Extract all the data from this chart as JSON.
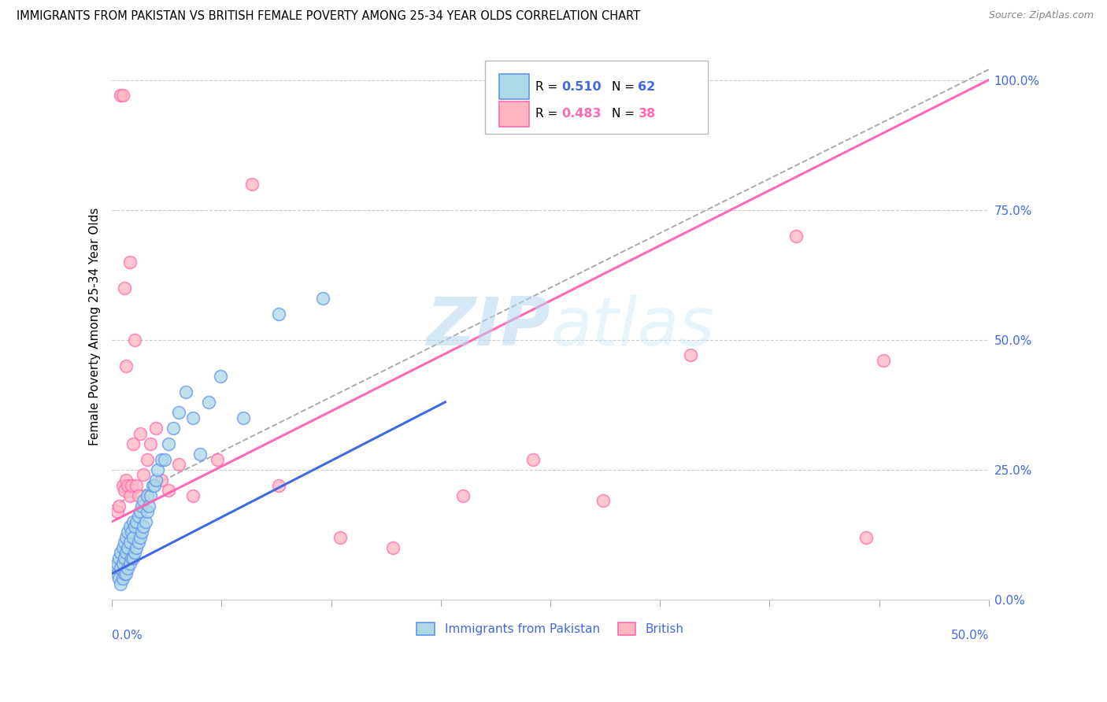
{
  "title": "IMMIGRANTS FROM PAKISTAN VS BRITISH FEMALE POVERTY AMONG 25-34 YEAR OLDS CORRELATION CHART",
  "source": "Source: ZipAtlas.com",
  "ylabel": "Female Poverty Among 25-34 Year Olds",
  "legend_label_blue": "Immigrants from Pakistan",
  "legend_label_pink": "British",
  "xlim": [
    0.0,
    0.5
  ],
  "ylim": [
    0.0,
    1.05
  ],
  "ytick_vals": [
    0.0,
    0.25,
    0.5,
    0.75,
    1.0
  ],
  "ytick_labels": [
    "0.0%",
    "25.0%",
    "50.0%",
    "75.0%",
    "100.0%"
  ],
  "xtick_left": "0.0%",
  "xtick_right": "50.0%",
  "r_blue": "0.510",
  "n_blue": "62",
  "r_pink": "0.483",
  "n_pink": "38",
  "color_blue_face": "#ADD8E6",
  "color_blue_edge": "#6495ED",
  "color_blue_line": "#4169E1",
  "color_blue_text": "#4169E1",
  "color_pink_face": "#FFB6C1",
  "color_pink_edge": "#FF69B4",
  "color_pink_line": "#FF69B4",
  "color_pink_text": "#FF69B4",
  "color_grid": "#cccccc",
  "color_watermark": "#cce5f5",
  "blue_line_x0": 0.0,
  "blue_line_y0": 0.05,
  "blue_line_x1": 0.19,
  "blue_line_y1": 0.38,
  "pink_line_x0": 0.0,
  "pink_line_y0": 0.15,
  "pink_line_x1": 0.5,
  "pink_line_y1": 1.0,
  "dash_line_x0": 0.0,
  "dash_line_y0": 0.18,
  "dash_line_x1": 0.5,
  "dash_line_y1": 1.02,
  "blue_x": [
    0.002,
    0.003,
    0.003,
    0.004,
    0.004,
    0.005,
    0.005,
    0.005,
    0.006,
    0.006,
    0.006,
    0.007,
    0.007,
    0.007,
    0.008,
    0.008,
    0.008,
    0.009,
    0.009,
    0.009,
    0.01,
    0.01,
    0.01,
    0.011,
    0.011,
    0.012,
    0.012,
    0.012,
    0.013,
    0.013,
    0.014,
    0.014,
    0.015,
    0.015,
    0.016,
    0.016,
    0.017,
    0.017,
    0.018,
    0.018,
    0.019,
    0.02,
    0.02,
    0.021,
    0.022,
    0.023,
    0.024,
    0.025,
    0.026,
    0.028,
    0.03,
    0.032,
    0.035,
    0.038,
    0.042,
    0.046,
    0.05,
    0.055,
    0.062,
    0.075,
    0.095,
    0.12
  ],
  "blue_y": [
    0.06,
    0.05,
    0.07,
    0.04,
    0.08,
    0.03,
    0.06,
    0.09,
    0.04,
    0.07,
    0.1,
    0.05,
    0.08,
    0.11,
    0.05,
    0.09,
    0.12,
    0.06,
    0.1,
    0.13,
    0.07,
    0.11,
    0.14,
    0.08,
    0.13,
    0.08,
    0.12,
    0.15,
    0.09,
    0.14,
    0.1,
    0.15,
    0.11,
    0.16,
    0.12,
    0.17,
    0.13,
    0.18,
    0.14,
    0.19,
    0.15,
    0.17,
    0.2,
    0.18,
    0.2,
    0.22,
    0.22,
    0.23,
    0.25,
    0.27,
    0.27,
    0.3,
    0.33,
    0.36,
    0.4,
    0.35,
    0.28,
    0.38,
    0.43,
    0.35,
    0.55,
    0.58
  ],
  "pink_x": [
    0.003,
    0.004,
    0.005,
    0.006,
    0.006,
    0.007,
    0.007,
    0.008,
    0.008,
    0.009,
    0.01,
    0.01,
    0.011,
    0.012,
    0.013,
    0.014,
    0.015,
    0.016,
    0.018,
    0.02,
    0.022,
    0.025,
    0.028,
    0.032,
    0.038,
    0.046,
    0.06,
    0.08,
    0.095,
    0.13,
    0.16,
    0.2,
    0.24,
    0.28,
    0.33,
    0.39,
    0.43,
    0.44
  ],
  "pink_y": [
    0.17,
    0.18,
    0.97,
    0.97,
    0.22,
    0.6,
    0.21,
    0.23,
    0.45,
    0.22,
    0.65,
    0.2,
    0.22,
    0.3,
    0.5,
    0.22,
    0.2,
    0.32,
    0.24,
    0.27,
    0.3,
    0.33,
    0.23,
    0.21,
    0.26,
    0.2,
    0.27,
    0.8,
    0.22,
    0.12,
    0.1,
    0.2,
    0.27,
    0.19,
    0.47,
    0.7,
    0.12,
    0.46
  ]
}
